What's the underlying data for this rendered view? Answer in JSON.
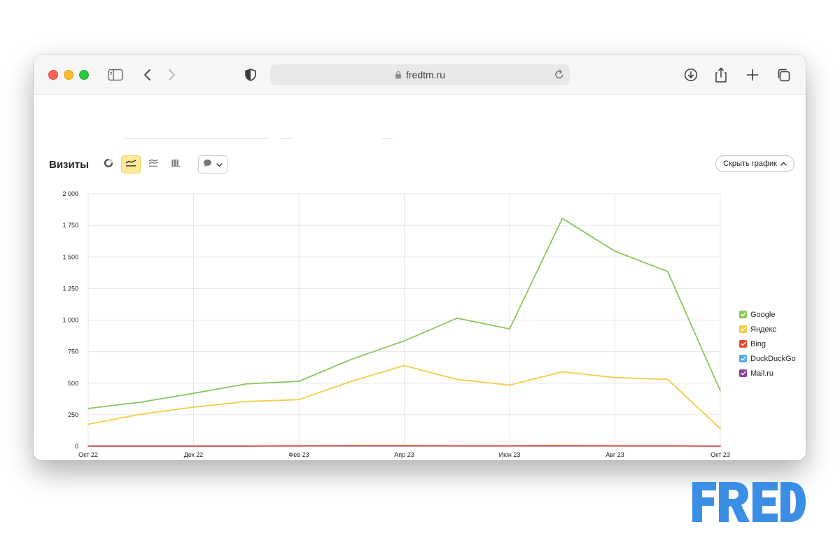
{
  "browser": {
    "url": "fredtm.ru",
    "colors": {
      "close": "#fe5f57",
      "minimize": "#febc2e",
      "zoom": "#28c840"
    }
  },
  "chart_header": {
    "title": "Визиты",
    "hide_label": "Скрыть график",
    "active_view": "line-chart",
    "active_color": "#fde99a"
  },
  "chart_data": {
    "type": "line",
    "x": [
      "2022-10",
      "2022-11",
      "2022-12",
      "2023-01",
      "2023-02",
      "2023-03",
      "2023-04",
      "2023-05",
      "2023-06",
      "2023-07",
      "2023-08",
      "2023-09",
      "2023-10"
    ],
    "x_tick_labels": [
      "Окт 22",
      "Дек 22",
      "Фев 23",
      "Апр 23",
      "Июн 23",
      "Авг 23",
      "Окт 23"
    ],
    "y_tick_labels": [
      "0",
      "250",
      "500",
      "750",
      "1 000",
      "1 250",
      "1 500",
      "1 750",
      "2 000"
    ],
    "ylim": [
      0,
      2000
    ],
    "grid": true,
    "legend_position": "right",
    "series": [
      {
        "name": "Google",
        "color": "#8dc55d",
        "values": [
          300,
          350,
          420,
          495,
          515,
          690,
          835,
          1015,
          930,
          1805,
          1545,
          1385,
          440
        ]
      },
      {
        "name": "Яндекс",
        "color": "#f5cb46",
        "values": [
          175,
          255,
          310,
          355,
          370,
          515,
          640,
          530,
          485,
          590,
          545,
          530,
          140
        ]
      },
      {
        "name": "Bing",
        "color": "#e8482c",
        "values": [
          3,
          3,
          3,
          3,
          4,
          5,
          5,
          4,
          4,
          5,
          4,
          4,
          2
        ]
      },
      {
        "name": "DuckDuckGo",
        "color": "#5aa9e3",
        "values": [
          2,
          2,
          2,
          2,
          3,
          4,
          4,
          3,
          3,
          4,
          3,
          3,
          1
        ]
      },
      {
        "name": "Mail.ru",
        "color": "#8e3fa3",
        "values": [
          1,
          1,
          1,
          1,
          2,
          3,
          2,
          2,
          2,
          2,
          2,
          2,
          1
        ]
      }
    ]
  },
  "brand": {
    "logo_text": "FRED",
    "color": "#3a8ee6"
  }
}
